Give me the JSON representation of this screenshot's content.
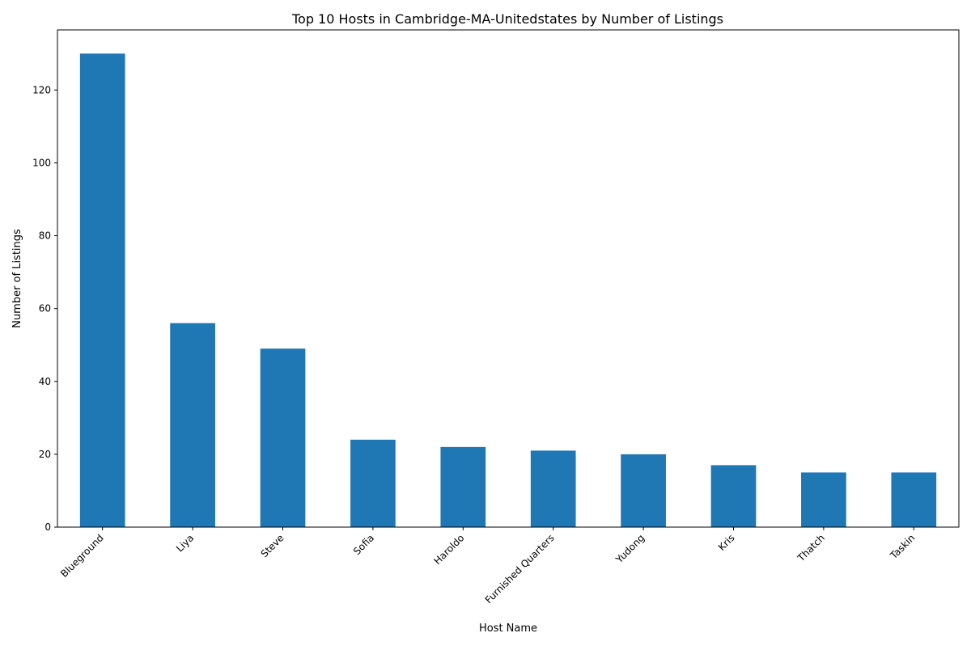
{
  "chart_data": {
    "type": "bar",
    "title": "Top 10 Hosts in Cambridge-MA-Unitedstates by Number of Listings",
    "xlabel": "Host Name",
    "ylabel": "Number of Listings",
    "categories": [
      "Blueground",
      "Liya",
      "Steve",
      "Sofia",
      "Haroldo",
      "Furnished Quarters",
      "Yudong",
      "Kris",
      "Thatch",
      "Taskin"
    ],
    "values": [
      130,
      56,
      49,
      24,
      22,
      21,
      20,
      17,
      15,
      15
    ],
    "ylim": [
      0,
      136.5
    ],
    "yticks": [
      0,
      20,
      40,
      60,
      80,
      100,
      120
    ],
    "bar_color": "#1f77b4",
    "grid": false,
    "legend": "none"
  }
}
